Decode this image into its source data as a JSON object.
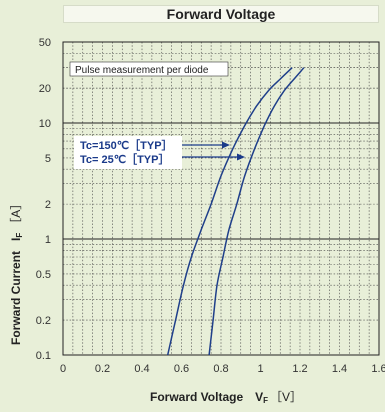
{
  "chart_data": {
    "type": "line",
    "title": "Forward Voltage",
    "xlabel": "Forward Voltage",
    "xlabel_symbol": "V",
    "xlabel_sub": "F",
    "xlabel_unit": "［V］",
    "ylabel": "Forward Current",
    "ylabel_symbol": "I",
    "ylabel_sub": "F",
    "ylabel_unit": "［A］",
    "xlim": [
      0,
      1.6
    ],
    "ylim": [
      0.1,
      50
    ],
    "yscale": "log",
    "grid": true,
    "x_ticks": [
      "0",
      "0.2",
      "0.4",
      "0.6",
      "0.8",
      "1",
      "1.2",
      "1.4",
      "1.6"
    ],
    "y_ticks": [
      "0.1",
      "0.2",
      "0.5",
      "1",
      "2",
      "5",
      "10",
      "20",
      "50"
    ],
    "annotation": "Pulse measurement per diode",
    "series": [
      {
        "name": "Tc=150℃［TYP］",
        "x": [
          0.53,
          0.57,
          0.61,
          0.65,
          0.7,
          0.75,
          0.8,
          0.86,
          0.92,
          0.98,
          1.04,
          1.1,
          1.16
        ],
        "y": [
          0.1,
          0.2,
          0.4,
          0.7,
          1.2,
          2.0,
          3.5,
          6.0,
          9.5,
          14,
          19,
          24,
          30
        ]
      },
      {
        "name": "Tc=  25℃［TYP］",
        "x": [
          0.74,
          0.76,
          0.78,
          0.81,
          0.84,
          0.88,
          0.92,
          0.97,
          1.02,
          1.07,
          1.12,
          1.17,
          1.22
        ],
        "y": [
          0.1,
          0.2,
          0.4,
          0.7,
          1.2,
          2.0,
          3.5,
          6.0,
          9.5,
          14,
          19,
          24,
          30
        ]
      }
    ]
  }
}
